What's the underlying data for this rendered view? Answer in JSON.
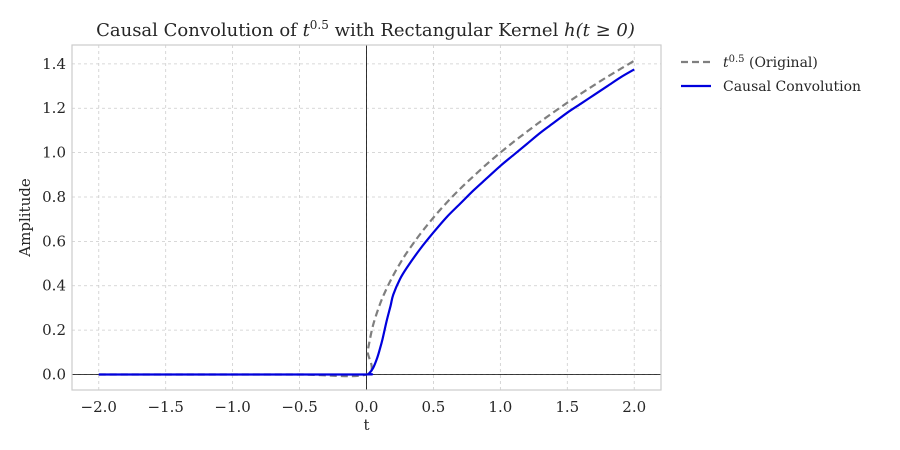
{
  "chart_data": {
    "type": "line",
    "title": {
      "prefix": "Causal Convolution of ",
      "base": "t",
      "sup": "0.5",
      "middle": " with Rectangular Kernel ",
      "suffix": "h(t ≥ 0)"
    },
    "xlabel": "t",
    "ylabel": "Amplitude",
    "xlim": [
      -2.2,
      2.2
    ],
    "ylim": [
      -0.07,
      1.485
    ],
    "xticks": [
      -2.0,
      -1.5,
      -1.0,
      -0.5,
      0.0,
      0.5,
      1.0,
      1.5,
      2.0
    ],
    "xtick_labels": [
      "−2.0",
      "−1.5",
      "−1.0",
      "−0.5",
      "0.0",
      "0.5",
      "1.0",
      "1.5",
      "2.0"
    ],
    "yticks": [
      0.0,
      0.2,
      0.4,
      0.6,
      0.8,
      1.0,
      1.2,
      1.4
    ],
    "ytick_labels": [
      "0.0",
      "0.2",
      "0.4",
      "0.6",
      "0.8",
      "1.0",
      "1.2",
      "1.4"
    ],
    "grid": true,
    "legend_position": "outside-upper-right",
    "reference_lines": {
      "x": 0,
      "y": 0
    },
    "series": [
      {
        "name": "t^0.5 (Original)",
        "legend_label": {
          "base": "t",
          "sup": "0.5",
          "text": " (Original)"
        },
        "style": "dashed",
        "color": "#7f7f7f",
        "x": [
          -2.0,
          -1.5,
          -1.0,
          -0.5,
          0.0,
          0.01,
          0.02,
          0.05,
          0.1,
          0.15,
          0.2,
          0.25,
          0.3,
          0.4,
          0.5,
          0.6,
          0.7,
          0.8,
          0.9,
          1.0,
          1.1,
          1.2,
          1.3,
          1.4,
          1.5,
          1.6,
          1.7,
          1.8,
          1.9,
          2.0
        ],
        "y": [
          0.0,
          0.0,
          0.0,
          0.0,
          0.0,
          0.1,
          0.141,
          0.224,
          0.316,
          0.387,
          0.447,
          0.5,
          0.548,
          0.632,
          0.707,
          0.775,
          0.837,
          0.894,
          0.949,
          1.0,
          1.049,
          1.095,
          1.14,
          1.183,
          1.225,
          1.265,
          1.304,
          1.342,
          1.378,
          1.414
        ]
      },
      {
        "name": "Causal Convolution",
        "legend_label": {
          "text": "Causal Convolution"
        },
        "style": "solid",
        "color": "#0000dd",
        "x": [
          -2.0,
          -1.5,
          -1.0,
          -0.5,
          0.0,
          0.02,
          0.05,
          0.08,
          0.1,
          0.12,
          0.15,
          0.18,
          0.2,
          0.25,
          0.3,
          0.4,
          0.5,
          0.6,
          0.7,
          0.8,
          0.9,
          1.0,
          1.1,
          1.2,
          1.3,
          1.4,
          1.5,
          1.6,
          1.7,
          1.8,
          1.9,
          2.0
        ],
        "y": [
          0.0,
          0.0,
          0.0,
          0.0,
          0.0,
          0.005,
          0.03,
          0.075,
          0.115,
          0.16,
          0.24,
          0.31,
          0.36,
          0.43,
          0.48,
          0.565,
          0.64,
          0.71,
          0.77,
          0.83,
          0.885,
          0.94,
          0.99,
          1.04,
          1.09,
          1.135,
          1.18,
          1.22,
          1.26,
          1.3,
          1.34,
          1.375
        ]
      }
    ]
  }
}
